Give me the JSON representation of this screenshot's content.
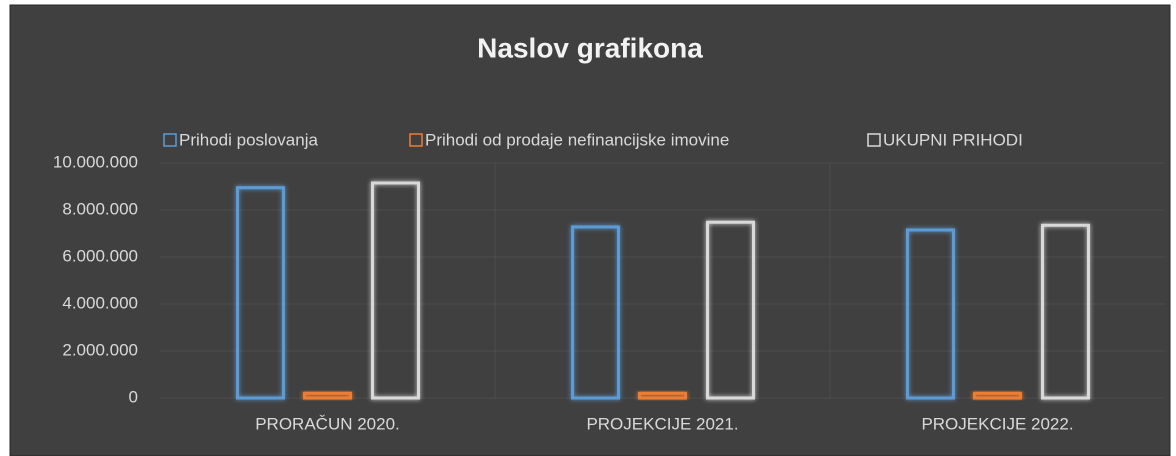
{
  "chart_data": {
    "type": "bar",
    "title": "Naslov grafikona",
    "categories": [
      "PRORAČUN 2020.",
      "PROJEKCIJE 2021.",
      "PROJEKCIJE 2022."
    ],
    "series": [
      {
        "name": "Prihodi poslovanja",
        "color": "#5b9bd5",
        "values": [
          8950000,
          7280000,
          7150000
        ]
      },
      {
        "name": "Prihodi od prodaje nefinancijske imovine",
        "color": "#ed7d31",
        "values": [
          200000,
          200000,
          200000
        ]
      },
      {
        "name": "UKUPNI PRIHODI",
        "color": "#d9d9d9",
        "values": [
          9150000,
          7480000,
          7350000
        ]
      }
    ],
    "ylim": [
      0,
      10000000
    ],
    "yticks": [
      0,
      {
        "value": 2000000,
        "label": "2.000.000"
      },
      {
        "value": 4000000,
        "label": "4.000.000"
      },
      {
        "value": 6000000,
        "label": "6.000.000"
      },
      {
        "value": 8000000,
        "label": "8.000.000"
      },
      {
        "value": 10000000,
        "label": "10.000.000"
      }
    ],
    "grid": true,
    "legend": "top"
  }
}
